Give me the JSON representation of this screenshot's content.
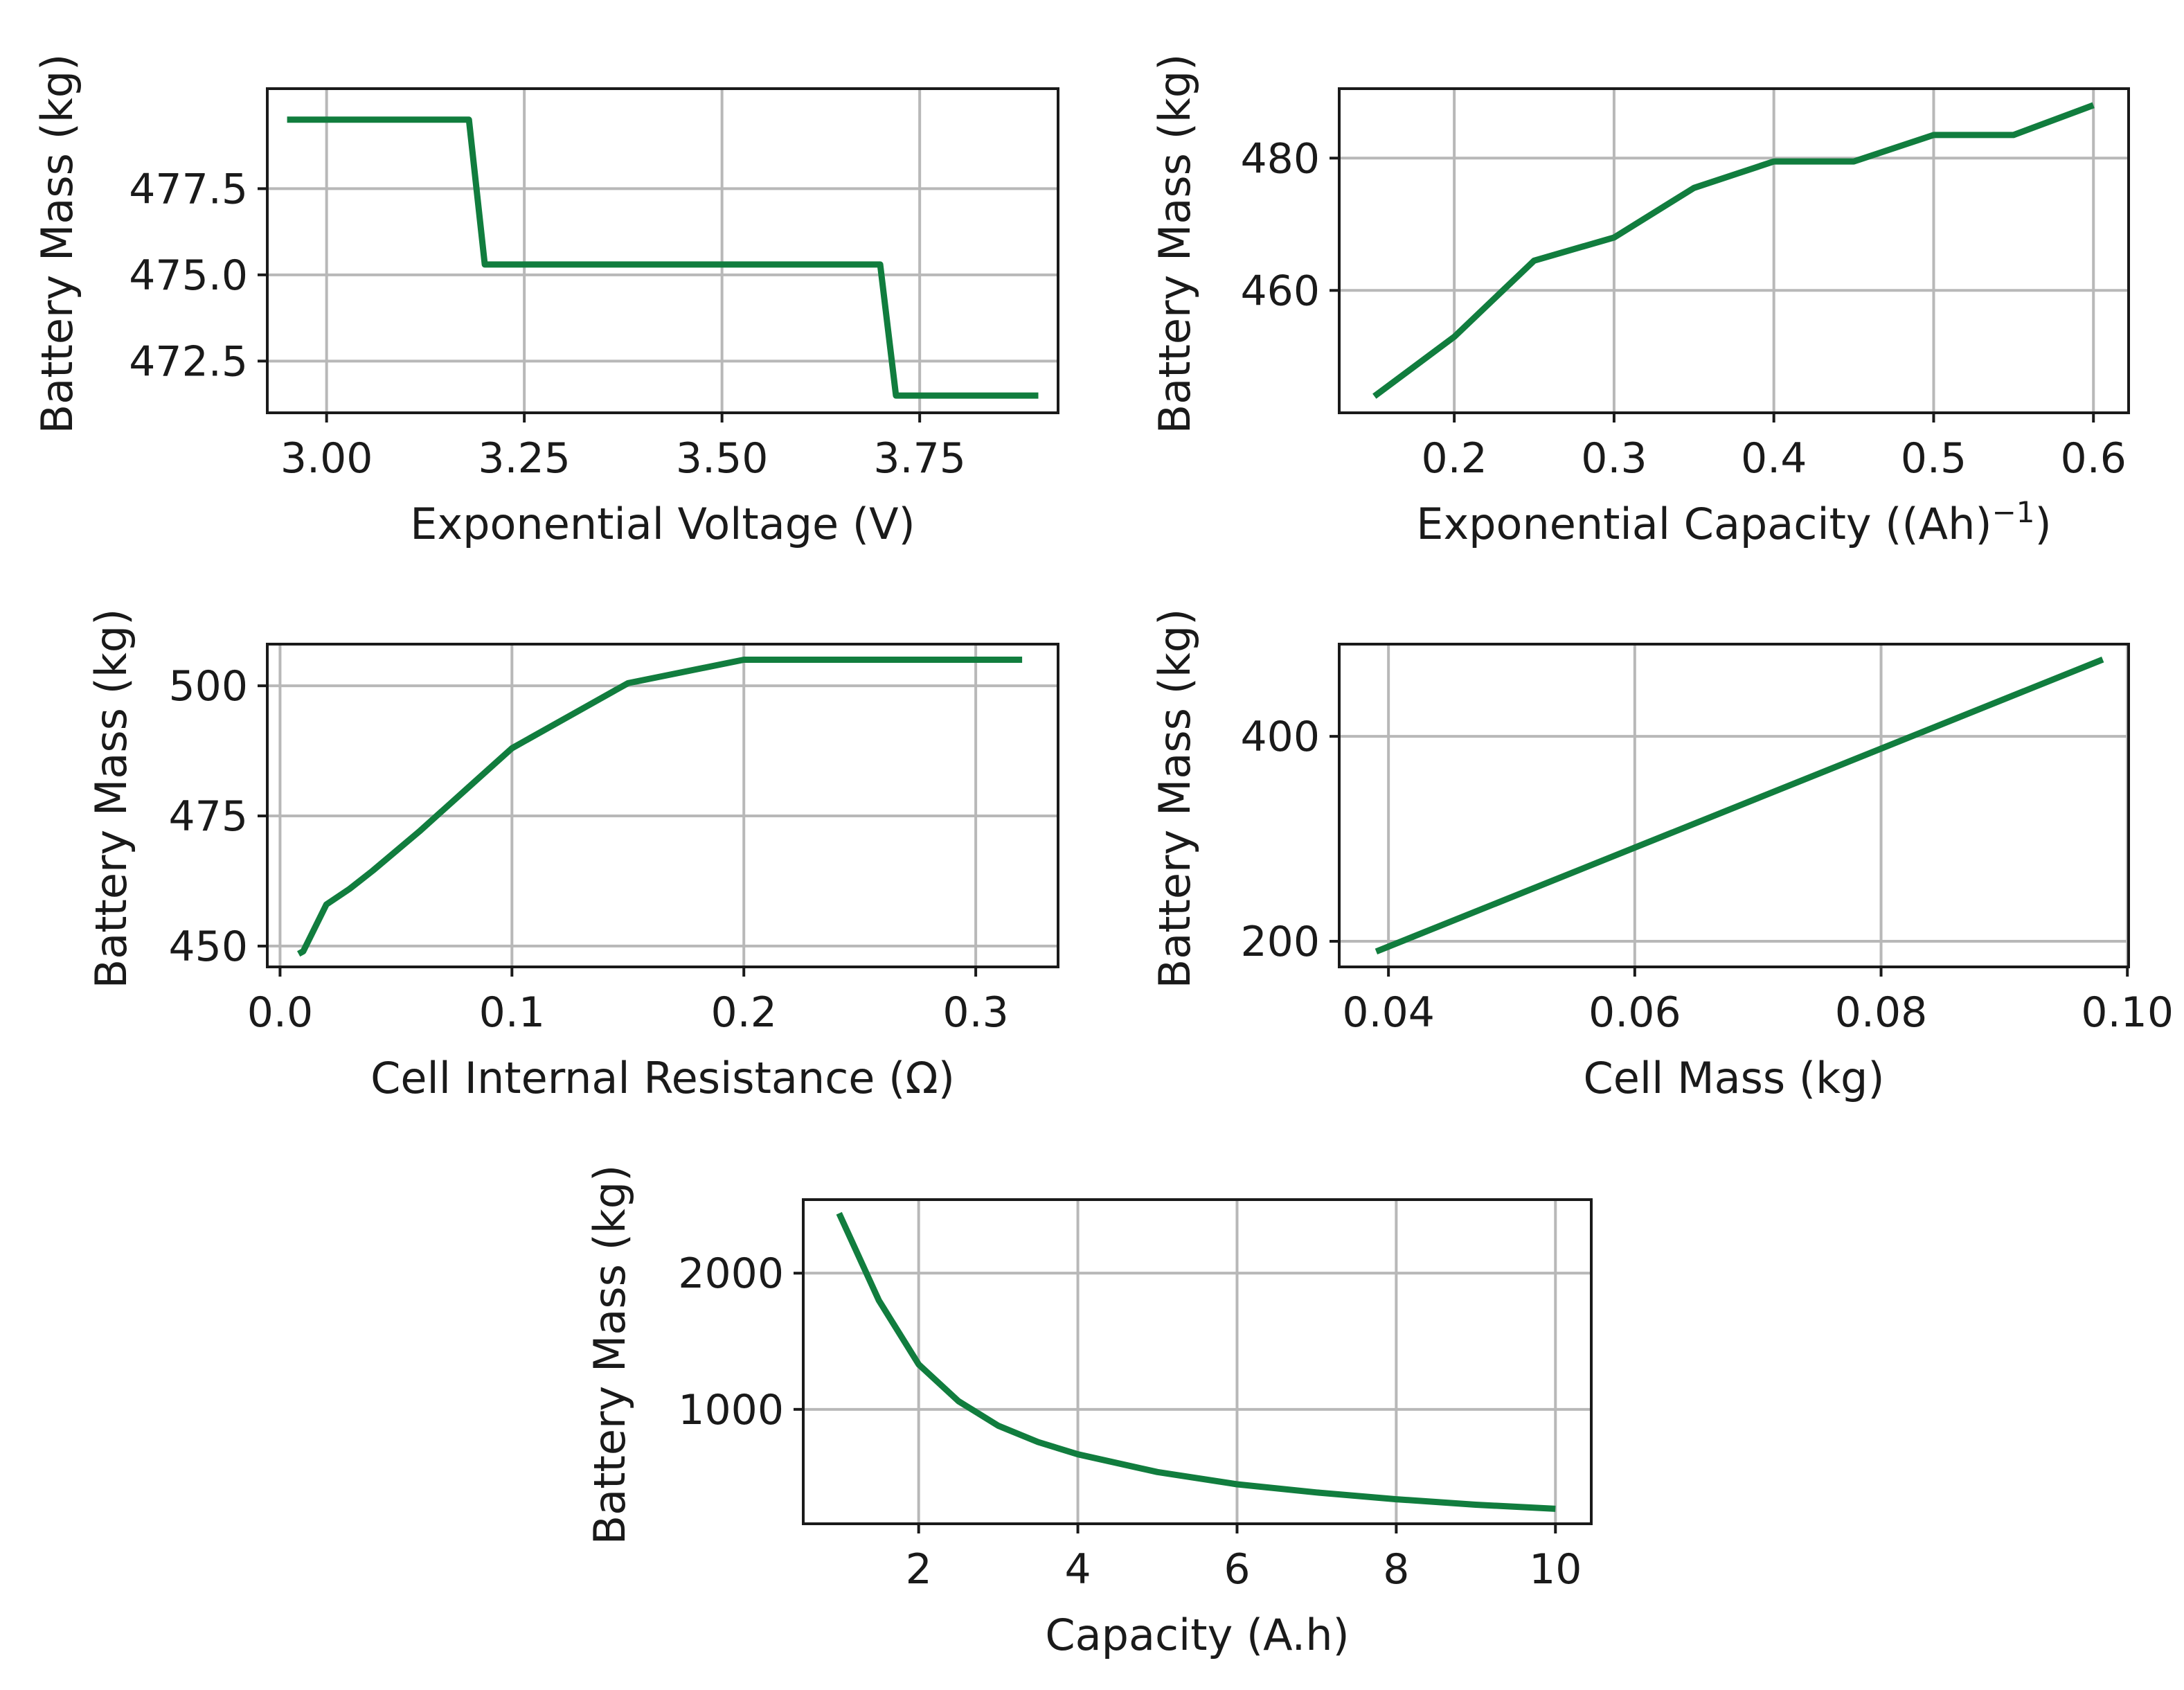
{
  "series_color": "#117d3e",
  "chart_data": [
    {
      "type": "line",
      "name": "exponential-voltage",
      "xlabel": "Exponential Voltage (V)",
      "ylabel": "Battery Mass (kg)",
      "xlim": [
        2.925,
        3.925
      ],
      "ylim": [
        471.0,
        480.4
      ],
      "xticks": [
        3.0,
        3.25,
        3.5,
        3.75
      ],
      "xtick_labels": [
        "3.00",
        "3.25",
        "3.50",
        "3.75"
      ],
      "yticks": [
        472.5,
        475.0,
        477.5
      ],
      "ytick_labels": [
        "472.5",
        "475.0",
        "477.5"
      ],
      "series": [
        {
          "name": "Battery Mass",
          "x": [
            2.95,
            3.18,
            3.2,
            3.7,
            3.72,
            3.9
          ],
          "y": [
            479.5,
            479.5,
            475.3,
            475.3,
            471.5,
            471.5
          ]
        }
      ]
    },
    {
      "type": "line",
      "name": "exponential-capacity",
      "xlabel_main": "Exponential Capacity ((Ah)",
      "xlabel_sup": "−1",
      "xlabel_close": ")",
      "ylabel": "Battery Mass (kg)",
      "xlim": [
        0.128,
        0.622
      ],
      "ylim": [
        441.5,
        490.5
      ],
      "xticks": [
        0.2,
        0.3,
        0.4,
        0.5,
        0.6
      ],
      "xtick_labels": [
        "0.2",
        "0.3",
        "0.4",
        "0.5",
        "0.6"
      ],
      "yticks": [
        460,
        480
      ],
      "ytick_labels": [
        "460",
        "480"
      ],
      "series": [
        {
          "name": "Battery Mass",
          "x": [
            0.15,
            0.2,
            0.25,
            0.3,
            0.35,
            0.4,
            0.45,
            0.5,
            0.55,
            0.6
          ],
          "y": [
            444,
            453,
            464.5,
            468,
            475.5,
            479.5,
            479.5,
            483.5,
            483.5,
            488
          ]
        }
      ]
    },
    {
      "type": "line",
      "name": "cell-internal-resistance",
      "xlabel": "Cell Internal Resistance (Ω)",
      "ylabel": "Battery Mass (kg)",
      "xlim": [
        -0.0055,
        0.3355
      ],
      "ylim": [
        446,
        508
      ],
      "xticks": [
        0.0,
        0.1,
        0.2,
        0.3
      ],
      "xtick_labels": [
        "0.0",
        "0.1",
        "0.2",
        "0.3"
      ],
      "yticks": [
        450,
        475,
        500
      ],
      "ytick_labels": [
        "450",
        "475",
        "500"
      ],
      "series": [
        {
          "name": "Battery Mass",
          "x": [
            0.008,
            0.01,
            0.02,
            0.03,
            0.04,
            0.06,
            0.08,
            0.1,
            0.15,
            0.2,
            0.32
          ],
          "y": [
            448.5,
            449,
            458,
            461,
            464.5,
            472,
            480,
            488,
            500.5,
            505,
            505
          ]
        }
      ]
    },
    {
      "type": "line",
      "name": "cell-mass",
      "xlabel": "Cell Mass (kg)",
      "ylabel": "Battery Mass (kg)",
      "xlim": [
        0.036,
        0.1001
      ],
      "ylim": [
        175,
        490
      ],
      "xticks": [
        0.04,
        0.06,
        0.08,
        0.1
      ],
      "xtick_labels": [
        "0.04",
        "0.06",
        "0.08",
        "0.10"
      ],
      "yticks": [
        200,
        400
      ],
      "ytick_labels": [
        "200",
        "400"
      ],
      "series": [
        {
          "name": "Battery Mass",
          "x": [
            0.039,
            0.098
          ],
          "y": [
            190,
            475
          ]
        }
      ]
    },
    {
      "type": "line",
      "name": "capacity",
      "xlabel": "Capacity (A.h)",
      "ylabel": "Battery Mass (kg)",
      "xlim": [
        0.55,
        10.45
      ],
      "ylim": [
        160,
        2540
      ],
      "xticks": [
        2,
        4,
        6,
        8,
        10
      ],
      "xtick_labels": [
        "2",
        "4",
        "6",
        "8",
        "10"
      ],
      "yticks": [
        1000,
        2000
      ],
      "ytick_labels": [
        "1000",
        "2000"
      ],
      "series": [
        {
          "name": "Battery Mass",
          "x": [
            1.0,
            1.5,
            2.0,
            2.5,
            3.0,
            3.5,
            4.0,
            5.0,
            6.0,
            7.0,
            8.0,
            9.0,
            10.0
          ],
          "y": [
            2440,
            1800,
            1330,
            1060,
            880,
            760,
            670,
            540,
            450,
            390,
            340,
            300,
            270
          ]
        }
      ]
    }
  ]
}
